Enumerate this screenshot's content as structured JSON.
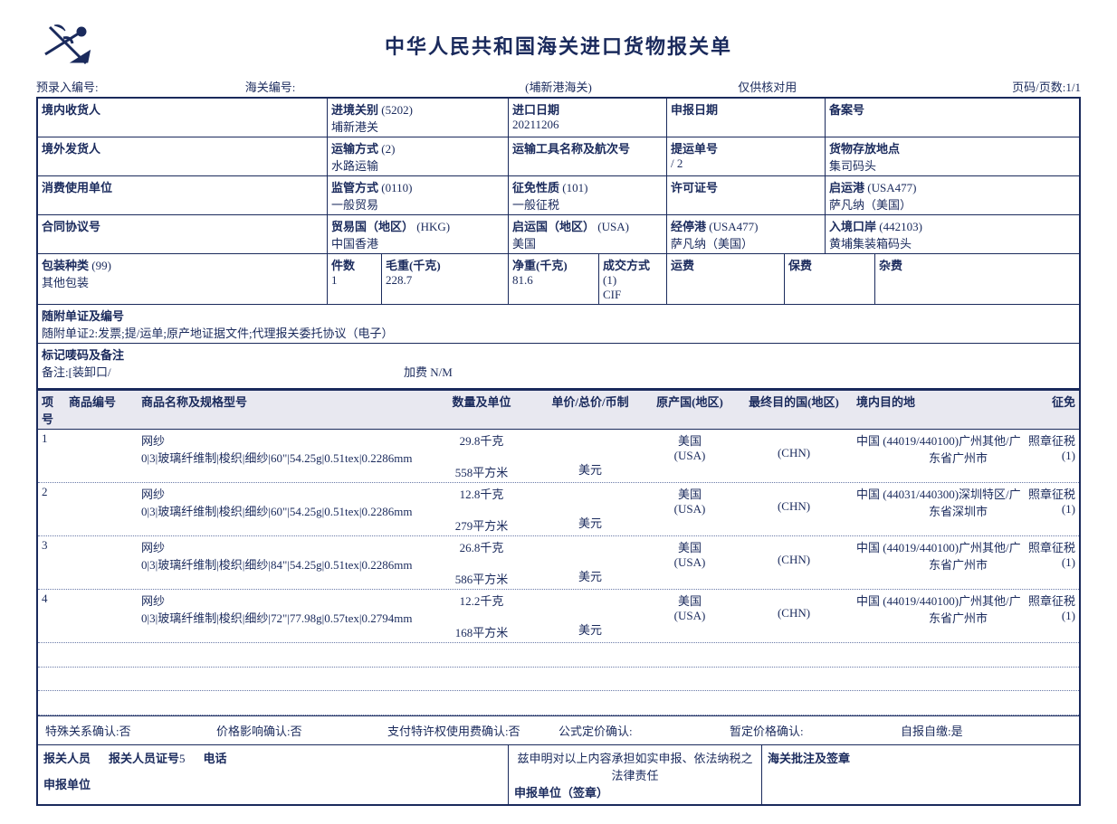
{
  "title": "中华人民共和国海关进口货物报关单",
  "top": {
    "pre_entry": "预录入编号:",
    "customs_no": "海关编号:",
    "customs_office": "(埔新港海关)",
    "verify": "仅供核对用",
    "page": "页码/页数:1/1"
  },
  "r1": {
    "consignee_l": "境内收货人",
    "entry_l": "进境关别",
    "entry_code": "(5202)",
    "entry_v": "埔新港关",
    "impdate_l": "进口日期",
    "impdate_v": "20211206",
    "decldate_l": "申报日期",
    "recno_l": "备案号"
  },
  "r2": {
    "shipper_l": "境外发货人",
    "trans_l": "运输方式",
    "trans_code": "(2)",
    "trans_v": "水路运输",
    "vessel_l": "运输工具名称及航次号",
    "bl_l": "提运单号",
    "bl_v": "/            2",
    "store_l": "货物存放地点",
    "store_v": "集司码头"
  },
  "r3": {
    "user_l": "消费使用单位",
    "sup_l": "监管方式",
    "sup_code": "(0110)",
    "sup_v": "一般贸易",
    "exempt_l": "征免性质",
    "exempt_code": "(101)",
    "exempt_v": "一般征税",
    "lic_l": "许可证号",
    "depport_l": "启运港",
    "depport_code": "(USA477)",
    "depport_v": "萨凡纳（美国）"
  },
  "r4": {
    "contract_l": "合同协议号",
    "trade_l": "贸易国（地区）",
    "trade_code": "(HKG)",
    "trade_v": "中国香港",
    "depctry_l": "启运国（地区）",
    "depctry_code": "(USA)",
    "depctry_v": "美国",
    "via_l": "经停港",
    "via_code": "(USA477)",
    "via_v": "萨凡纳（美国）",
    "entryport_l": "入境口岸",
    "entryport_code": "(442103)",
    "entryport_v": "黄埔集装箱码头"
  },
  "pack": {
    "type_l": "包装种类",
    "type_code": "(99)",
    "type_v": "其他包装",
    "pcs_l": "件数",
    "pcs_v": "1",
    "gross_l": "毛重(千克)",
    "gross_v": "228.7",
    "net_l": "净重(千克)",
    "net_v": "81.6",
    "deal_l": "成交方式",
    "deal_code": "(1)",
    "deal_v": "CIF",
    "freight_l": "运费",
    "ins_l": "保费",
    "misc_l": "杂费"
  },
  "attach": {
    "l": "随附单证及编号",
    "v": "随附单证2:发票;提/运单;原产地证据文件;代理报关委托协议（电子）"
  },
  "marks": {
    "l": "标记唛码及备注",
    "v1": "备注:[装卸口/",
    "v2": "加费  N/M"
  },
  "cols": {
    "idx": "项号",
    "code": "商品编号",
    "name": "商品名称及规格型号",
    "qty": "数量及单位",
    "price": "单价/总价/币制",
    "orig": "原产国(地区)",
    "dest": "最终目的国(地区)",
    "indest": "境内目的地",
    "tax": "征免"
  },
  "items": [
    {
      "idx": "1",
      "name": "网纱",
      "spec": "0|3|玻璃纤维制|梭织|细纱|60\"|54.25g|0.51tex|0.2286mm",
      "qty1": "29.8千克",
      "qty2": "558平方米",
      "cur": "美元",
      "orig": "美国",
      "orig2": "(USA)",
      "dest": "中国 (44019/440100)广州其他/广",
      "dest2": "(CHN)",
      "indest": "东省广州市",
      "tax": "照章征税",
      "tax2": "(1)"
    },
    {
      "idx": "2",
      "name": "网纱",
      "spec": "0|3|玻璃纤维制|梭织|细纱|60\"|54.25g|0.51tex|0.2286mm",
      "qty1": "12.8千克",
      "qty2": "279平方米",
      "cur": "美元",
      "orig": "美国",
      "orig2": "(USA)",
      "dest": "中国 (44031/440300)深圳特区/广",
      "dest2": "(CHN)",
      "indest": "东省深圳市",
      "tax": "照章征税",
      "tax2": "(1)"
    },
    {
      "idx": "3",
      "name": "网纱",
      "spec": "0|3|玻璃纤维制|梭织|细纱|84\"|54.25g|0.51tex|0.2286mm",
      "qty1": "26.8千克",
      "qty2": "586平方米",
      "cur": "美元",
      "orig": "美国",
      "orig2": "(USA)",
      "dest": "中国 (44019/440100)广州其他/广",
      "dest2": "(CHN)",
      "indest": "东省广州市",
      "tax": "照章征税",
      "tax2": "(1)"
    },
    {
      "idx": "4",
      "name": "网纱",
      "spec": "0|3|玻璃纤维制|梭织|细纱|72\"|77.98g|0.57tex|0.2794mm",
      "qty1": "12.2千克",
      "qty2": "168平方米",
      "cur": "美元",
      "orig": "美国",
      "orig2": "(USA)",
      "dest": "中国 (44019/440100)广州其他/广",
      "dest2": "(CHN)",
      "indest": "东省广州市",
      "tax": "照章征税",
      "tax2": "(1)"
    }
  ],
  "confirm": {
    "special": "特殊关系确认:否",
    "price": "价格影响确认:否",
    "royalty": "支付特许权使用费确认:否",
    "formula": "公式定价确认:",
    "prov": "暂定价格确认:",
    "self": "自报自缴:是"
  },
  "footer": {
    "declarer_l": "报关人员",
    "declarer_id_l": "报关人员证号",
    "declarer_id_v": "5",
    "phone_l": "电话",
    "unit_l": "申报单位",
    "stmt": "兹申明对以上内容承担如实申报、依法纳税之法律责任",
    "unit_seal": "申报单位（签章）",
    "customs_l": "海关批注及签章"
  }
}
